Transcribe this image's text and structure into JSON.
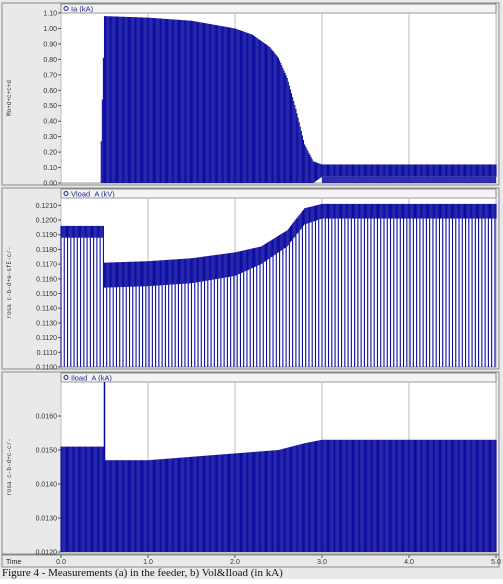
{
  "chart_data": [
    {
      "type": "line",
      "legend": "Ia (kA)",
      "side_label": "Mo+d+c+c+d",
      "ylim": [
        0.0,
        1.1
      ],
      "yticks": [
        "0.00",
        "0.10",
        "0.20",
        "0.30",
        "0.40",
        "0.50",
        "0.60",
        "0.70",
        "0.80",
        "0.90",
        "1.00",
        "1.10"
      ],
      "color": "#0c0ca0",
      "envelope": {
        "x": [
          0.45,
          0.5,
          1.0,
          1.5,
          2.0,
          2.2,
          2.4,
          2.5,
          2.6,
          2.7,
          2.8,
          2.9,
          3.0,
          3.5,
          4.0,
          4.5,
          5.0
        ],
        "upper": [
          0.0,
          1.08,
          1.07,
          1.05,
          1.0,
          0.96,
          0.88,
          0.81,
          0.68,
          0.48,
          0.25,
          0.14,
          0.12,
          0.12,
          0.12,
          0.12,
          0.12
        ],
        "lower": [
          0.0,
          0.0,
          0.0,
          0.0,
          0.0,
          0.0,
          0.0,
          0.0,
          0.0,
          0.0,
          0.0,
          0.0,
          0.04,
          0.04,
          0.04,
          0.04,
          0.04
        ]
      }
    },
    {
      "type": "line",
      "legend": "Vload_A (kV)",
      "side_label": "rosa c-b-d+e-sfE-c/-",
      "ylim": [
        0.11,
        0.1215
      ],
      "yticks": [
        "0.1100",
        "0.1110",
        "0.1120",
        "0.1130",
        "0.1140",
        "0.1150",
        "0.1160",
        "0.1170",
        "0.1180",
        "0.1190",
        "0.1200",
        "0.1210"
      ],
      "color": "#0c0ca0",
      "envelope": {
        "x": [
          0.0,
          0.5,
          0.5,
          1.0,
          1.5,
          2.0,
          2.3,
          2.6,
          2.8,
          3.0,
          3.5,
          4.0,
          5.0
        ],
        "upper": [
          0.1196,
          0.1196,
          0.1171,
          0.1172,
          0.1174,
          0.1178,
          0.1182,
          0.1193,
          0.1208,
          0.1211,
          0.1211,
          0.1211,
          0.1211
        ],
        "lower": [
          0.1188,
          0.1188,
          0.1154,
          0.1155,
          0.1157,
          0.1162,
          0.117,
          0.1182,
          0.1197,
          0.1201,
          0.1201,
          0.1201,
          0.1201
        ],
        "floor": 0.11
      }
    },
    {
      "type": "line",
      "legend": "Iload_A (kA)",
      "side_label": "rosa c-b-d+c-c/-",
      "ylim": [
        0.012,
        0.017
      ],
      "yticks": [
        "0.0120",
        "0.0130",
        "0.0140",
        "0.0150",
        "0.0160"
      ],
      "color": "#0c0ca0",
      "envelope": {
        "x": [
          0.0,
          0.5,
          0.5,
          1.0,
          1.5,
          2.0,
          2.5,
          2.8,
          3.0,
          4.0,
          5.0
        ],
        "upper": [
          0.0151,
          0.0151,
          0.0147,
          0.0147,
          0.0148,
          0.0149,
          0.015,
          0.0152,
          0.0153,
          0.0153,
          0.0153
        ],
        "lower": [
          0.012,
          0.012,
          0.012,
          0.012,
          0.012,
          0.012,
          0.012,
          0.012,
          0.012,
          0.012,
          0.012
        ],
        "spike": {
          "x": 0.5,
          "y": 0.017
        }
      }
    }
  ],
  "x_axis": {
    "label": "Time",
    "xlim": [
      0.0,
      5.0
    ],
    "ticks": [
      "0.0",
      "1.0",
      "2.0",
      "3.0",
      "4.0",
      "5.0"
    ]
  },
  "caption": "Figure 4 - Measurements (a) in the feeder, b) Vol&Iload (in kA)"
}
